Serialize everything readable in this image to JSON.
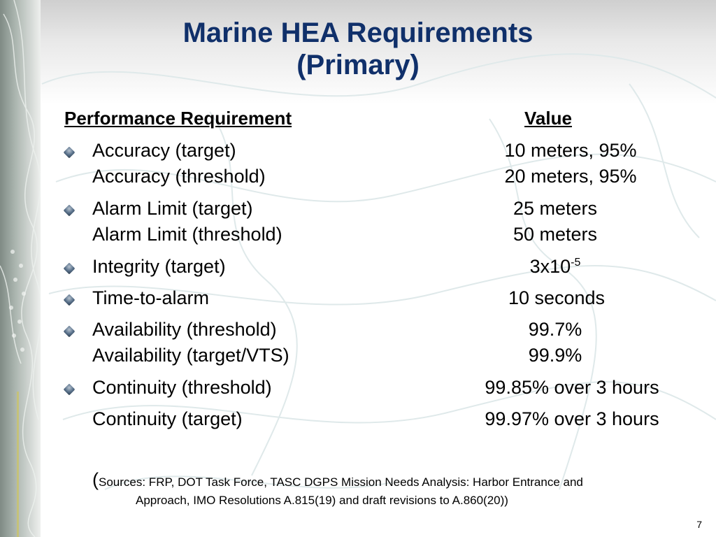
{
  "title": {
    "line1": "Marine HEA Requirements",
    "line2": "(Primary)"
  },
  "headers": {
    "requirement": "Performance Requirement",
    "value": "Value"
  },
  "rows": [
    {
      "label": "Accuracy (target)",
      "value": "10 meters, 95%"
    },
    {
      "label": "Accuracy (threshold)",
      "value": "20 meters, 95%"
    },
    {
      "label": "Alarm Limit (target)",
      "value": "25 meters"
    },
    {
      "label": "Alarm Limit (threshold)",
      "value": "50 meters"
    },
    {
      "label": "Integrity (target)",
      "value_base": "3x10",
      "value_exp": "-5"
    },
    {
      "label": "Time-to-alarm",
      "value": "10 seconds"
    },
    {
      "label": "Availability (threshold)",
      "value": "99.7%"
    },
    {
      "label": "Availability (target/VTS)",
      "value": "99.9%"
    },
    {
      "label": "Continuity (threshold)",
      "value": "99.85% over 3 hours"
    },
    {
      "label": "Continuity (target)",
      "value": "99.97% over 3 hours"
    }
  ],
  "sources": {
    "open_paren": "(",
    "line1": "Sources:  FRP, DOT Task Force, TASC DGPS Mission Needs Analysis: Harbor Entrance and",
    "line2": "Approach, IMO Resolutions A.815(19) and draft revisions to A.860(20))"
  },
  "page_number": "7"
}
